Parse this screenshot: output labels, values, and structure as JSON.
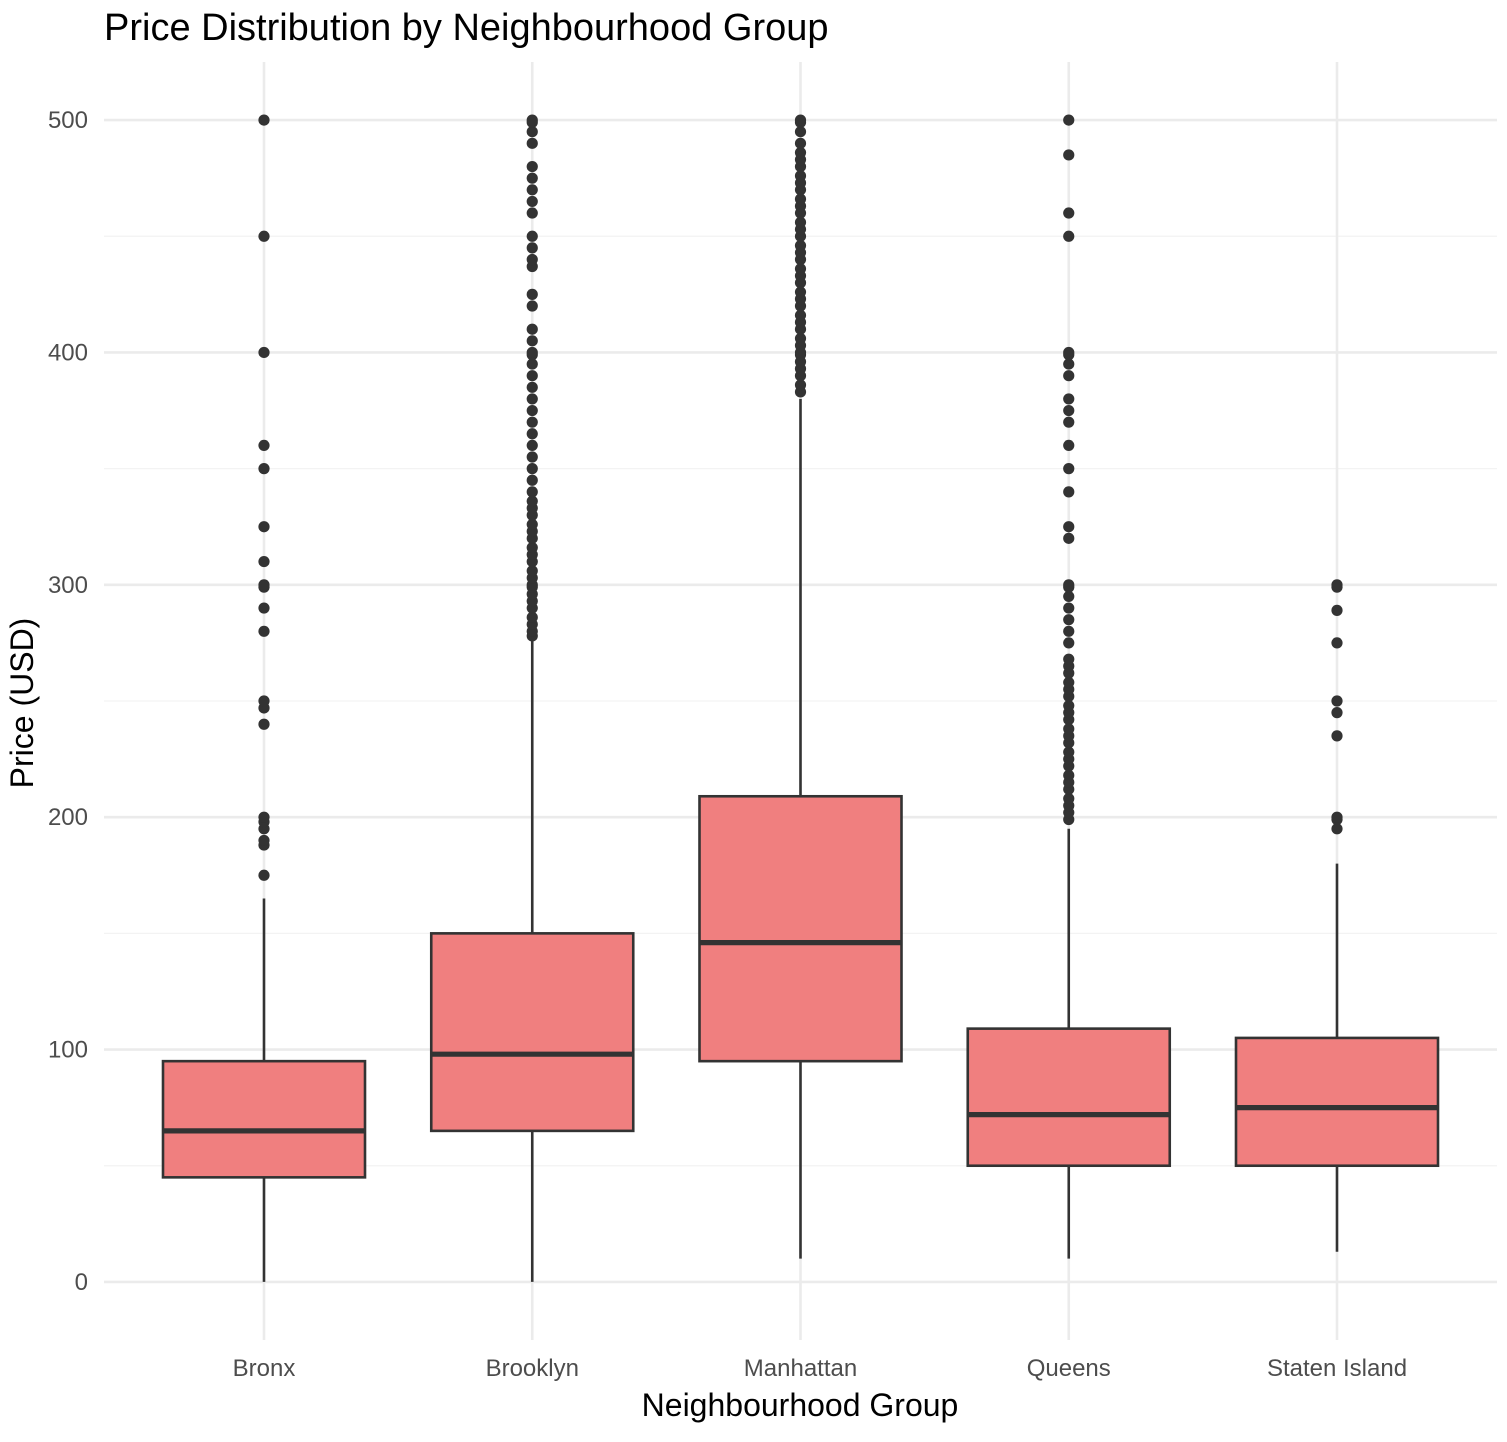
{
  "chart_data": {
    "type": "boxplot",
    "title": "Price Distribution by Neighbourhood Group",
    "xlabel": "Neighbourhood Group",
    "ylabel": "Price (USD)",
    "ylim": [
      -25,
      525
    ],
    "yticks": [
      0,
      100,
      200,
      300,
      400,
      500
    ],
    "grid": true,
    "legend": "none",
    "box_fill": "#F07F7F",
    "line_color": "#333333",
    "categories": [
      "Bronx",
      "Brooklyn",
      "Manhattan",
      "Queens",
      "Staten Island"
    ],
    "series": [
      {
        "category": "Bronx",
        "whisker_low": 0,
        "q1": 45,
        "median": 65,
        "q3": 95,
        "whisker_high": 165,
        "outliers": [
          175,
          188,
          190,
          195,
          198,
          200,
          240,
          247,
          250,
          280,
          290,
          299,
          300,
          310,
          325,
          350,
          360,
          400,
          450,
          500
        ]
      },
      {
        "category": "Brooklyn",
        "whisker_low": 0,
        "q1": 65,
        "median": 98,
        "q3": 150,
        "whisker_high": 276,
        "outliers": [
          278,
          280,
          283,
          286,
          290,
          293,
          296,
          299,
          300,
          303,
          306,
          310,
          313,
          316,
          320,
          323,
          326,
          330,
          333,
          336,
          340,
          345,
          350,
          355,
          360,
          365,
          370,
          375,
          380,
          385,
          390,
          395,
          399,
          400,
          405,
          410,
          420,
          425,
          437,
          440,
          445,
          450,
          460,
          465,
          470,
          475,
          480,
          490,
          495,
          499,
          500
        ]
      },
      {
        "category": "Manhattan",
        "whisker_low": 10,
        "q1": 95,
        "median": 146,
        "q3": 209,
        "whisker_high": 380,
        "outliers": [
          383,
          386,
          390,
          393,
          396,
          399,
          400,
          403,
          406,
          410,
          413,
          416,
          420,
          423,
          426,
          430,
          433,
          436,
          440,
          443,
          446,
          450,
          453,
          456,
          460,
          463,
          466,
          470,
          473,
          476,
          480,
          483,
          486,
          490,
          495,
          499,
          500
        ]
      },
      {
        "category": "Queens",
        "whisker_low": 10,
        "q1": 50,
        "median": 72,
        "q3": 109,
        "whisker_high": 195,
        "outliers": [
          199,
          202,
          205,
          208,
          212,
          215,
          218,
          222,
          225,
          228,
          232,
          235,
          238,
          242,
          245,
          248,
          252,
          255,
          258,
          262,
          265,
          268,
          275,
          280,
          285,
          290,
          295,
          299,
          300,
          320,
          325,
          340,
          350,
          360,
          370,
          375,
          380,
          390,
          395,
          399,
          400,
          450,
          460,
          485,
          500
        ]
      },
      {
        "category": "Staten Island",
        "whisker_low": 13,
        "q1": 50,
        "median": 75,
        "q3": 105,
        "whisker_high": 180,
        "outliers": [
          195,
          199,
          200,
          235,
          245,
          250,
          275,
          289,
          299,
          300
        ]
      }
    ]
  }
}
